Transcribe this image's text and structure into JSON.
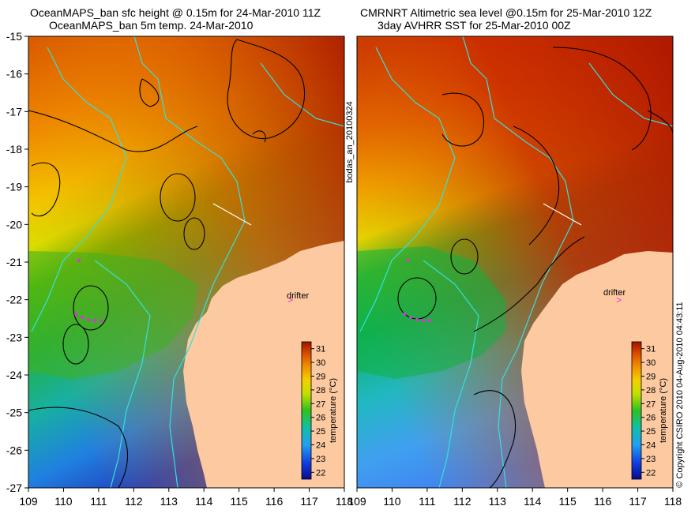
{
  "left_panel": {
    "title_line1": "OceanMAPS_ban sfc height @ 0.15m for 24-Mar-2010 11Z",
    "title_line2": "OceanMAPS_ban 5m temp. 24-Mar-2010"
  },
  "right_panel": {
    "title_line1": "CMRNRT Altimetric sea level  @0.15m  for 25-Mar-2010 12Z",
    "title_line2": "3day AVHRR SST for 25-Mar-2010 00Z"
  },
  "side_label": "bodas_an_20100324",
  "copyright": "© Copyright CSIRO 2010   04-Aug-2010 04:43:11",
  "drifter_label": "drifter",
  "lon_ticks": [
    "109",
    "110",
    "111",
    "112",
    "113",
    "114",
    "115",
    "116",
    "117",
    "118"
  ],
  "lat_ticks": [
    "-15",
    "-16",
    "-17",
    "-18",
    "-19",
    "-20",
    "-21",
    "-22",
    "-23",
    "-24",
    "-25",
    "-26",
    "-27"
  ],
  "colorbar": {
    "label": "temperature (°C)",
    "ticks": [
      "22",
      "23",
      "24",
      "25",
      "26",
      "27",
      "28",
      "29",
      "30",
      "31"
    ],
    "min": 21.5,
    "max": 31.5
  },
  "colors": {
    "land": "#fdc9a0",
    "coast_cyan": "#33e0e0",
    "contour": "#000000",
    "drifter_marker": "#e030e0"
  }
}
